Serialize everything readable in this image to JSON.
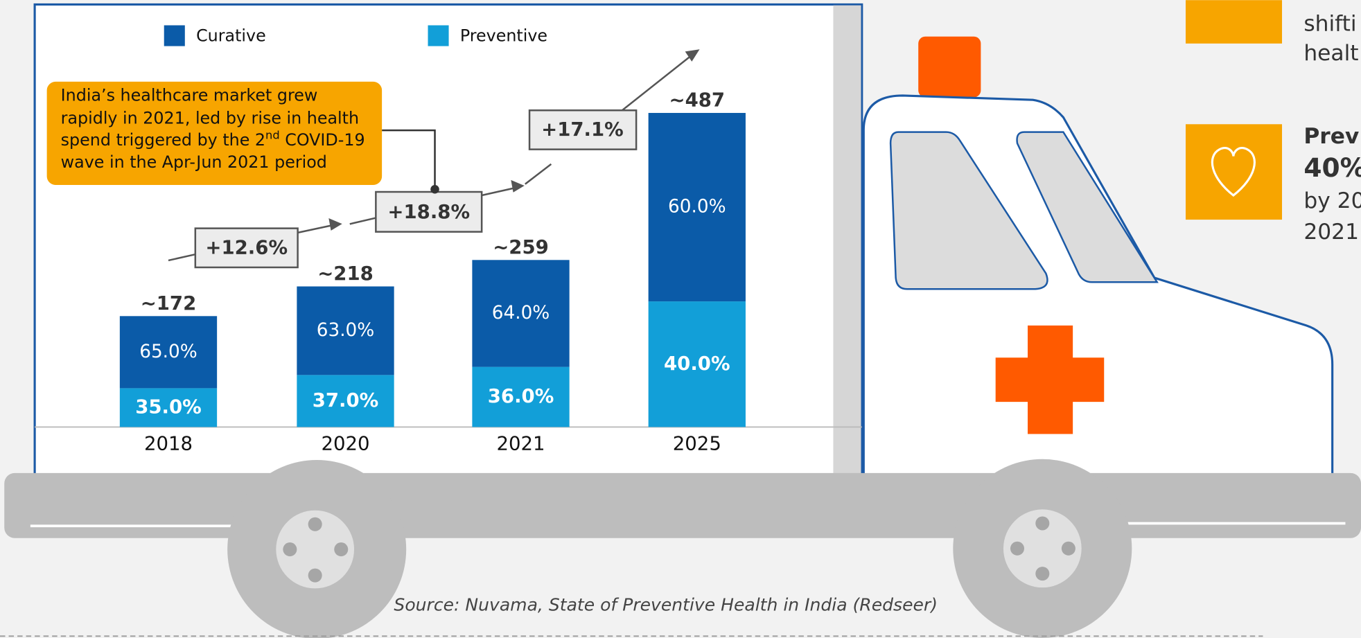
{
  "chart_data": {
    "type": "bar",
    "categories": [
      "2018",
      "2020",
      "2021",
      "2025"
    ],
    "totals": [
      172,
      218,
      259,
      487
    ],
    "totals_labels": [
      "~172",
      "~218",
      "~259",
      "~487"
    ],
    "series": [
      {
        "name": "Curative",
        "color": "#0b5ba8",
        "values": [
          65,
          63,
          64,
          60
        ],
        "value_labels": [
          "65.0%",
          "63.0%",
          "64.0%",
          "60.0%"
        ]
      },
      {
        "name": "Preventive",
        "color": "#129fd8",
        "values": [
          35,
          37,
          36,
          40
        ],
        "value_labels": [
          "35.0%",
          "37.0%",
          "36.0%",
          "40.0%"
        ]
      }
    ],
    "growth_labels": [
      "+12.6%",
      "+18.8%",
      "+17.1%"
    ],
    "callout": [
      "India’s healthcare market grew",
      "rapidly in 2021, led by rise in health",
      "spend triggered by the 2",
      "nd",
      " COVID-19",
      "wave in the Apr-Jun 2021 period"
    ],
    "source": "Source: Nuvama, State of Preventive Health in India (Redseer)"
  },
  "side_panel": {
    "lines": [
      "shifti",
      "healt",
      "Prev",
      "40%",
      "by 20",
      "2021"
    ]
  }
}
